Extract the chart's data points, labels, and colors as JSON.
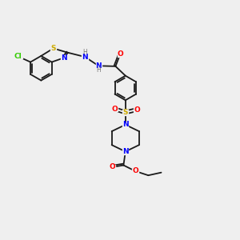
{
  "background_color": "#efefef",
  "bond_color": "#1a1a1a",
  "atom_colors": {
    "Cl": "#33cc00",
    "S": "#ccaa00",
    "N": "#0000ff",
    "O": "#ff0000",
    "H": "#777777",
    "C": "#1a1a1a"
  },
  "figsize": [
    3.0,
    3.0
  ],
  "dpi": 100
}
